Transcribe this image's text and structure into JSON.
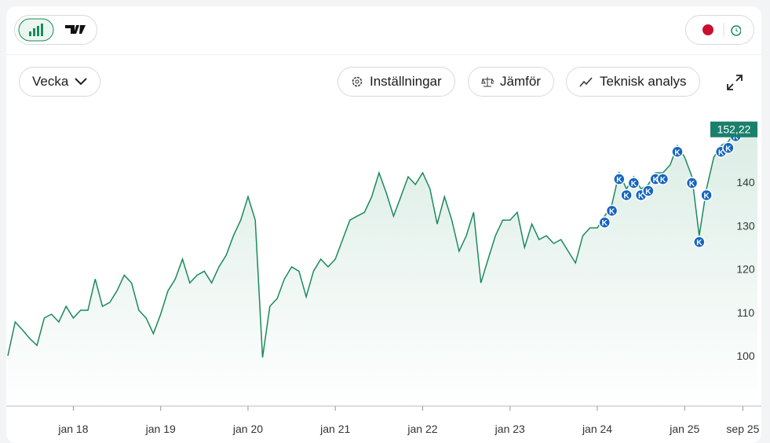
{
  "toolbar": {
    "period": "Vecka",
    "buttons": [
      "Inställningar",
      "Jämför",
      "Teknisk analys"
    ]
  },
  "chart_data": {
    "type": "line",
    "x": [
      "2017-04",
      "2017-05",
      "2017-06",
      "2017-07",
      "2017-08",
      "2017-09",
      "2017-10",
      "2017-11",
      "2017-12",
      "2018-01",
      "2018-02",
      "2018-03",
      "2018-04",
      "2018-05",
      "2018-06",
      "2018-07",
      "2018-08",
      "2018-09",
      "2018-10",
      "2018-11",
      "2018-12",
      "2019-01",
      "2019-02",
      "2019-03",
      "2019-04",
      "2019-05",
      "2019-06",
      "2019-07",
      "2019-08",
      "2019-09",
      "2019-10",
      "2019-11",
      "2019-12",
      "2020-01",
      "2020-02",
      "2020-03",
      "2020-04",
      "2020-05",
      "2020-06",
      "2020-07",
      "2020-08",
      "2020-09",
      "2020-10",
      "2020-11",
      "2020-12",
      "2021-01",
      "2021-02",
      "2021-03",
      "2021-04",
      "2021-05",
      "2021-06",
      "2021-07",
      "2021-08",
      "2021-09",
      "2021-10",
      "2021-11",
      "2021-12",
      "2022-01",
      "2022-02",
      "2022-03",
      "2022-04",
      "2022-05",
      "2022-06",
      "2022-07",
      "2022-08",
      "2022-09",
      "2022-10",
      "2022-11",
      "2022-12",
      "2023-01",
      "2023-02",
      "2023-03",
      "2023-04",
      "2023-05",
      "2023-06",
      "2023-07",
      "2023-08",
      "2023-09",
      "2023-10",
      "2023-11",
      "2023-12",
      "2024-01",
      "2024-02",
      "2024-03",
      "2024-04",
      "2024-05",
      "2024-06",
      "2024-07",
      "2024-08",
      "2024-09",
      "2024-10",
      "2024-11",
      "2024-12",
      "2025-01",
      "2025-02",
      "2025-03",
      "2025-04",
      "2025-05",
      "2025-06",
      "2025-07",
      "2025-08",
      "2025-09",
      "2025-10",
      "2025-11"
    ],
    "series": [
      {
        "color": "#1a8a5c",
        "values": [
          100,
          107.8,
          106,
          104,
          102.4,
          108.7,
          109.6,
          107.8,
          111.4,
          108.7,
          110.5,
          110.5,
          117.7,
          111.4,
          112.3,
          115,
          118.6,
          116.8,
          110.5,
          108.7,
          105.1,
          109.6,
          115,
          117.7,
          122.3,
          116.8,
          118.6,
          119.5,
          116.8,
          120.5,
          123.2,
          127.7,
          131.3,
          136.7,
          131.3,
          99.6,
          111.4,
          113.2,
          117.7,
          120.5,
          119.5,
          113.6,
          119.5,
          122.3,
          120.5,
          122.3,
          126.8,
          131.3,
          132.2,
          133.1,
          136.7,
          142.2,
          137.6,
          132.2,
          136.7,
          141.3,
          139.5,
          142.2,
          138.5,
          130.4,
          136.7,
          131.3,
          124.1,
          127.7,
          133.1,
          116.8,
          122.3,
          127.7,
          131.3,
          131.3,
          133.1,
          125,
          130.4,
          126.8,
          127.7,
          125.9,
          126.8,
          124.1,
          121.4,
          127.7,
          129.5,
          129.5,
          132.2,
          134.9,
          142.2,
          138.5,
          141.3,
          138.5,
          139.5,
          142.2,
          142.2,
          144,
          148.5,
          145.8,
          141.3,
          127.7,
          138.5,
          145.8,
          148.5,
          149.4,
          152.1,
          152.1,
          153.9,
          152.22
        ]
      }
    ],
    "xlim": [
      "2017-04",
      "2025-11"
    ],
    "xticks": [
      {
        "value": "2018-01",
        "label": "jan 18"
      },
      {
        "value": "2019-01",
        "label": "jan 19"
      },
      {
        "value": "2020-01",
        "label": "jan 20"
      },
      {
        "value": "2021-01",
        "label": "jan 21"
      },
      {
        "value": "2022-01",
        "label": "jan 22"
      },
      {
        "value": "2023-01",
        "label": "jan 23"
      },
      {
        "value": "2024-01",
        "label": "jan 24"
      },
      {
        "value": "2025-01",
        "label": "jan 25"
      },
      {
        "value": "2025-09",
        "label": "sep 25"
      }
    ],
    "ylim": [
      88.4,
      156.7
    ],
    "yticks": [
      100,
      110,
      120,
      130,
      140
    ],
    "last_label": "152,22",
    "markers": {
      "label": "K",
      "x": [
        "2024-02",
        "2024-03",
        "2024-04",
        "2024-05",
        "2024-06",
        "2024-07",
        "2024-08",
        "2024-09",
        "2024-10",
        "2024-12",
        "2025-02",
        "2025-03",
        "2025-04",
        "2025-06",
        "2025-07",
        "2025-08",
        "2025-10"
      ]
    }
  }
}
